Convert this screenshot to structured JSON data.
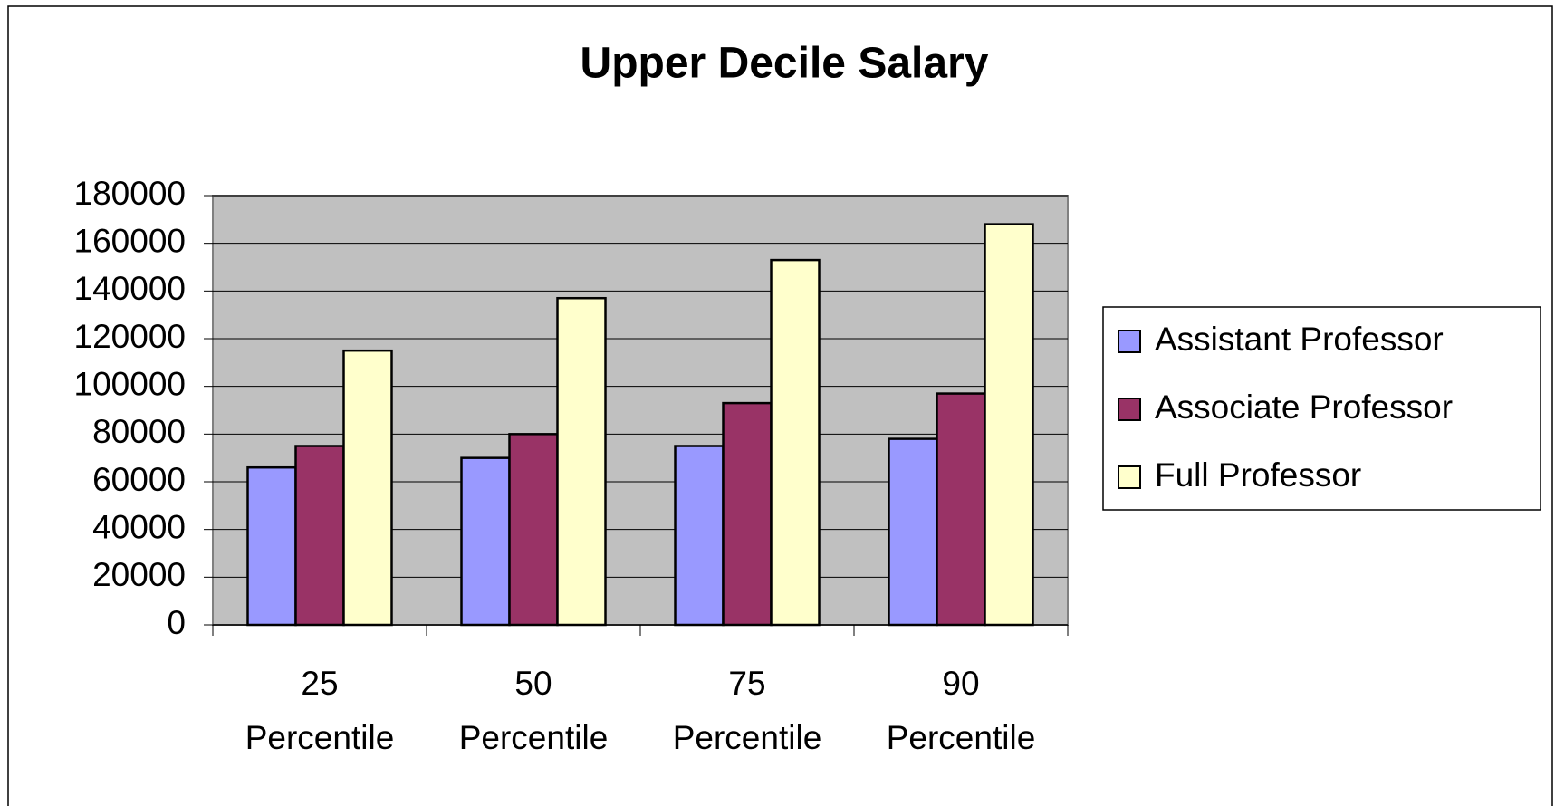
{
  "chart_data": {
    "type": "bar",
    "title": "Upper Decile Salary",
    "categories": [
      "25 Percentile",
      "50 Percentile",
      "75 Percentile",
      "90 Percentile"
    ],
    "series": [
      {
        "name": "Assistant Professor",
        "color": "#9999ff",
        "values": [
          66000,
          70000,
          75000,
          78000
        ]
      },
      {
        "name": "Associate Professor",
        "color": "#993366",
        "values": [
          75000,
          80000,
          93000,
          97000
        ]
      },
      {
        "name": "Full Professor",
        "color": "#ffffcc",
        "values": [
          115000,
          137000,
          153000,
          168000
        ]
      }
    ],
    "ylim": [
      0,
      180000
    ],
    "yticks": [
      0,
      20000,
      40000,
      60000,
      80000,
      100000,
      120000,
      140000,
      160000,
      180000
    ],
    "grid": true,
    "legend": "right"
  }
}
